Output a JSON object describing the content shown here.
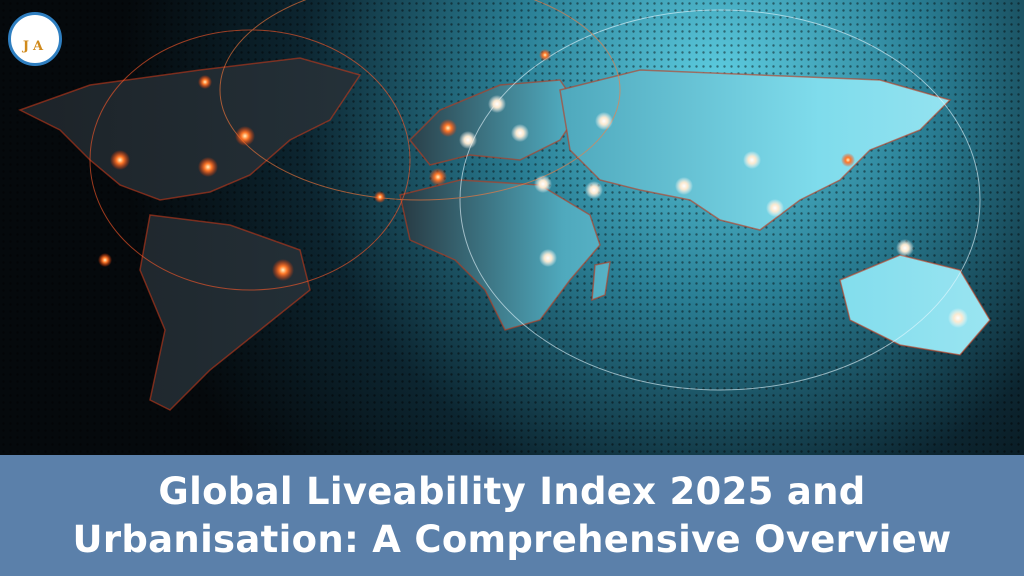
{
  "logo": {
    "letters": "JA"
  },
  "title": {
    "lines": [
      "Global Liveability Index 2025 and",
      "Urbanisation: A Comprehensive Overview"
    ]
  }
}
